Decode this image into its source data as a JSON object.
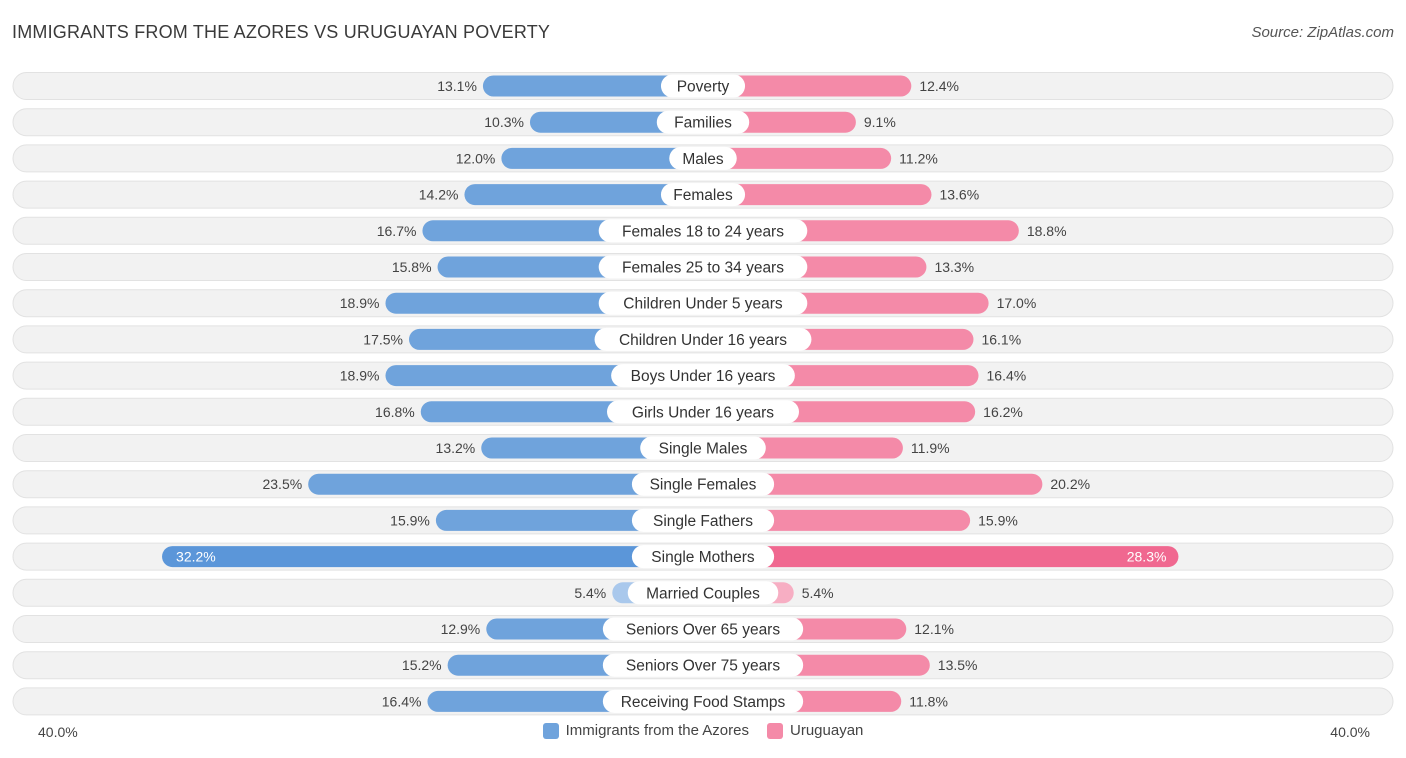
{
  "header": {
    "title": "IMMIGRANTS FROM THE AZORES VS URUGUAYAN POVERTY",
    "source": "Source: ZipAtlas.com"
  },
  "colors": {
    "left": "#6fa3dc",
    "left_strong": "#5b96d9",
    "left_light": "#a9c8ec",
    "right": "#f48aa8",
    "right_strong": "#f06890",
    "right_light": "#f7aec3",
    "row_bg": "#f2f2f2",
    "row_border": "#e2e2e2"
  },
  "chart_data": {
    "type": "bar",
    "orientation": "horizontal-diverging",
    "title": "IMMIGRANTS FROM THE AZORES VS URUGUAYAN POVERTY",
    "axis_min_label": "40.0%",
    "axis_max_label": "40.0%",
    "xlim": [
      0,
      40
    ],
    "categories": [
      "Poverty",
      "Families",
      "Males",
      "Females",
      "Females 18 to 24 years",
      "Females 25 to 34 years",
      "Children Under 5 years",
      "Children Under 16 years",
      "Boys Under 16 years",
      "Girls Under 16 years",
      "Single Males",
      "Single Females",
      "Single Fathers",
      "Single Mothers",
      "Married Couples",
      "Seniors Over 65 years",
      "Seniors Over 75 years",
      "Receiving Food Stamps"
    ],
    "series": [
      {
        "name": "Immigrants from the Azores",
        "values": [
          13.1,
          10.3,
          12.0,
          14.2,
          16.7,
          15.8,
          18.9,
          17.5,
          18.9,
          16.8,
          13.2,
          23.5,
          15.9,
          32.2,
          5.4,
          12.9,
          15.2,
          16.4
        ],
        "labels": [
          "13.1%",
          "10.3%",
          "12.0%",
          "14.2%",
          "16.7%",
          "15.8%",
          "18.9%",
          "17.5%",
          "18.9%",
          "16.8%",
          "13.2%",
          "23.5%",
          "15.9%",
          "32.2%",
          "5.4%",
          "12.9%",
          "15.2%",
          "16.4%"
        ]
      },
      {
        "name": "Uruguayan",
        "values": [
          12.4,
          9.1,
          11.2,
          13.6,
          18.8,
          13.3,
          17.0,
          16.1,
          16.4,
          16.2,
          11.9,
          20.2,
          15.9,
          28.3,
          5.4,
          12.1,
          13.5,
          11.8
        ],
        "labels": [
          "12.4%",
          "9.1%",
          "11.2%",
          "13.6%",
          "18.8%",
          "13.3%",
          "17.0%",
          "16.1%",
          "16.4%",
          "16.2%",
          "11.9%",
          "20.2%",
          "15.9%",
          "28.3%",
          "5.4%",
          "12.1%",
          "13.5%",
          "11.8%"
        ]
      }
    ],
    "legend": [
      "Immigrants from the Azores",
      "Uruguayan"
    ],
    "legend_position": "bottom-center"
  }
}
